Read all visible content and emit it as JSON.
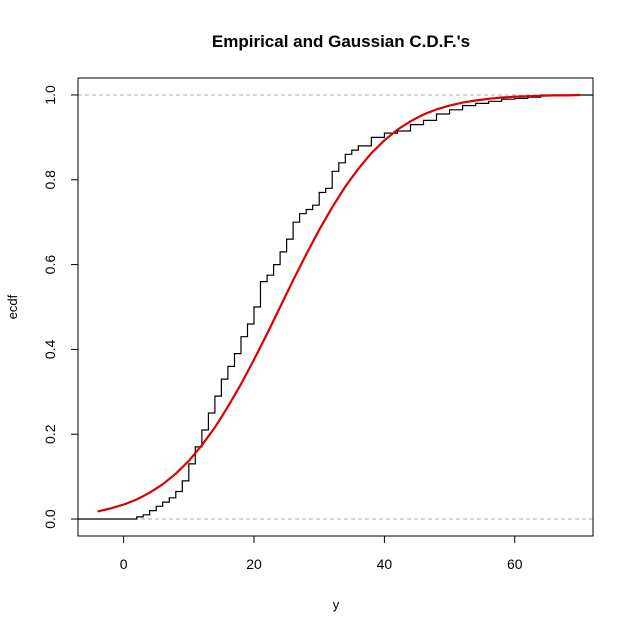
{
  "chart_data": {
    "type": "line",
    "title": "Empirical and Gaussian C.D.F.'s",
    "xlabel": "y",
    "ylabel": "ecdf",
    "xlim": [
      -7,
      72
    ],
    "ylim": [
      -0.04,
      1.04
    ],
    "x_ticks": [
      0,
      20,
      40,
      60
    ],
    "x_tick_labels": [
      "0",
      "20",
      "40",
      "60"
    ],
    "y_ticks": [
      0,
      0.2,
      0.4,
      0.6,
      0.8,
      1.0
    ],
    "y_tick_labels": [
      "0.0",
      "0.2",
      "0.4",
      "0.6",
      "0.8",
      "1.0"
    ],
    "reference_lines": [
      0,
      1
    ],
    "grid": false,
    "legend": "none",
    "colors": {
      "ecdf": "#000000",
      "gaussian": "#dd0000",
      "reference": "#aaaaaa"
    },
    "series": [
      {
        "kind": "step",
        "color": "#000000",
        "x": [
          1.0,
          2.0,
          3.0,
          4.0,
          5.0,
          6.0,
          7.0,
          8.0,
          9.0,
          10.0,
          11.0,
          12.0,
          13.0,
          14.0,
          15.0,
          16.0,
          17.0,
          18.0,
          19.0,
          20.0,
          21.0,
          22.0,
          23.0,
          24.0,
          25.0,
          26.0,
          27.0,
          28.0,
          29.0,
          30.0,
          31.0,
          32.0,
          33.0,
          34.0,
          35.0,
          36.0,
          38.0,
          40.0,
          42.0,
          44.0,
          46.0,
          48.0,
          50.0,
          52.0,
          54.0,
          56.0,
          58.0,
          60.0,
          62.0,
          64.0
        ],
        "y": [
          0.0,
          0.005,
          0.01,
          0.02,
          0.03,
          0.04,
          0.05,
          0.065,
          0.09,
          0.13,
          0.17,
          0.21,
          0.25,
          0.29,
          0.33,
          0.36,
          0.39,
          0.43,
          0.46,
          0.5,
          0.56,
          0.575,
          0.6,
          0.63,
          0.66,
          0.7,
          0.72,
          0.73,
          0.74,
          0.77,
          0.78,
          0.82,
          0.84,
          0.86,
          0.87,
          0.88,
          0.9,
          0.91,
          0.915,
          0.93,
          0.94,
          0.955,
          0.965,
          0.975,
          0.98,
          0.985,
          0.99,
          0.992,
          0.995,
          1.0
        ]
      },
      {
        "kind": "line",
        "color": "#dd0000",
        "x": [
          -4,
          -2,
          0,
          2,
          4,
          6,
          8,
          10,
          12,
          14,
          16,
          18,
          20,
          22,
          24,
          26,
          28,
          30,
          32,
          34,
          36,
          38,
          40,
          42,
          44,
          46,
          48,
          50,
          52,
          54,
          56,
          58,
          60,
          62,
          64,
          66,
          68,
          70
        ],
        "y": [
          0.018,
          0.025,
          0.034,
          0.046,
          0.062,
          0.082,
          0.107,
          0.137,
          0.174,
          0.216,
          0.265,
          0.318,
          0.376,
          0.437,
          0.5,
          0.563,
          0.624,
          0.682,
          0.735,
          0.784,
          0.826,
          0.863,
          0.893,
          0.918,
          0.938,
          0.954,
          0.966,
          0.975,
          0.982,
          0.987,
          0.991,
          0.994,
          0.996,
          0.997,
          0.998,
          0.999,
          0.999,
          1.0
        ]
      }
    ]
  }
}
